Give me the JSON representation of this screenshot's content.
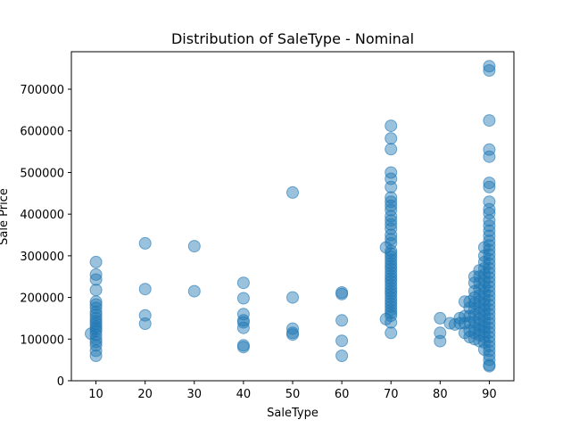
{
  "chart_data": {
    "type": "scatter",
    "title": "Distribution of SaleType - Nominal",
    "xlabel": "SaleType",
    "ylabel": "Sale Price",
    "xlim": [
      5,
      95
    ],
    "ylim": [
      0,
      790000
    ],
    "xticks": [
      10,
      20,
      30,
      40,
      50,
      60,
      70,
      80,
      90
    ],
    "yticks": [
      0,
      100000,
      200000,
      300000,
      400000,
      500000,
      600000,
      700000
    ],
    "point_color": "#1f77b4",
    "point_alpha": 0.45,
    "grid": false,
    "series": [
      {
        "points": [
          [
            10,
            285000
          ],
          [
            10,
            255000
          ],
          [
            10,
            243000
          ],
          [
            10,
            218000
          ],
          [
            10,
            190000
          ],
          [
            10,
            183000
          ],
          [
            10,
            175000
          ],
          [
            10,
            165000
          ],
          [
            10,
            158000
          ],
          [
            10,
            150000
          ],
          [
            10,
            143000
          ],
          [
            10,
            137000
          ],
          [
            10,
            130000
          ],
          [
            10,
            125000
          ],
          [
            10,
            119000
          ],
          [
            9,
            113000
          ],
          [
            10,
            110000
          ],
          [
            10,
            100000
          ],
          [
            10,
            93000
          ],
          [
            10,
            85000
          ],
          [
            10,
            72000
          ],
          [
            10,
            60000
          ],
          [
            20,
            330000
          ],
          [
            20,
            220000
          ],
          [
            20,
            157000
          ],
          [
            20,
            137000
          ],
          [
            30,
            323000
          ],
          [
            30,
            215000
          ],
          [
            40,
            235000
          ],
          [
            40,
            198000
          ],
          [
            40,
            160000
          ],
          [
            40,
            145000
          ],
          [
            40,
            140000
          ],
          [
            40,
            127000
          ],
          [
            40,
            85000
          ],
          [
            40,
            81000
          ],
          [
            50,
            452000
          ],
          [
            50,
            200000
          ],
          [
            50,
            125000
          ],
          [
            50,
            115000
          ],
          [
            50,
            111000
          ],
          [
            60,
            212000
          ],
          [
            60,
            208000
          ],
          [
            60,
            145000
          ],
          [
            60,
            96000
          ],
          [
            60,
            60000
          ],
          [
            70,
            612000
          ],
          [
            70,
            582000
          ],
          [
            70,
            556000
          ],
          [
            70,
            500000
          ],
          [
            70,
            485000
          ],
          [
            70,
            465000
          ],
          [
            70,
            440000
          ],
          [
            70,
            430000
          ],
          [
            70,
            420000
          ],
          [
            70,
            410000
          ],
          [
            70,
            395000
          ],
          [
            70,
            385000
          ],
          [
            70,
            375000
          ],
          [
            70,
            365000
          ],
          [
            70,
            350000
          ],
          [
            70,
            340000
          ],
          [
            70,
            330000
          ],
          [
            69,
            320000
          ],
          [
            70,
            312000
          ],
          [
            70,
            305000
          ],
          [
            70,
            298000
          ],
          [
            70,
            290000
          ],
          [
            70,
            282000
          ],
          [
            70,
            275000
          ],
          [
            70,
            268000
          ],
          [
            70,
            260000
          ],
          [
            70,
            252000
          ],
          [
            70,
            245000
          ],
          [
            70,
            238000
          ],
          [
            70,
            230000
          ],
          [
            70,
            222000
          ],
          [
            70,
            215000
          ],
          [
            70,
            208000
          ],
          [
            70,
            200000
          ],
          [
            70,
            192000
          ],
          [
            70,
            185000
          ],
          [
            70,
            178000
          ],
          [
            70,
            170000
          ],
          [
            70,
            163000
          ],
          [
            70,
            156000
          ],
          [
            69,
            148000
          ],
          [
            70,
            140000
          ],
          [
            70,
            115000
          ],
          [
            80,
            150000
          ],
          [
            80,
            115000
          ],
          [
            80,
            95000
          ],
          [
            82,
            138000
          ],
          [
            83,
            135000
          ],
          [
            84,
            138000
          ],
          [
            84,
            150000
          ],
          [
            85,
            115000
          ],
          [
            85,
            138000
          ],
          [
            85,
            155000
          ],
          [
            85,
            190000
          ],
          [
            86,
            105000
          ],
          [
            86,
            120000
          ],
          [
            86,
            140000
          ],
          [
            86,
            155000
          ],
          [
            86,
            175000
          ],
          [
            86,
            190000
          ],
          [
            87,
            100000
          ],
          [
            87,
            115000
          ],
          [
            87,
            128000
          ],
          [
            87,
            142000
          ],
          [
            87,
            158000
          ],
          [
            87,
            172000
          ],
          [
            87,
            186000
          ],
          [
            87,
            200000
          ],
          [
            87,
            215000
          ],
          [
            87,
            235000
          ],
          [
            87,
            250000
          ],
          [
            88,
            95000
          ],
          [
            88,
            110000
          ],
          [
            88,
            122000
          ],
          [
            88,
            135000
          ],
          [
            88,
            148000
          ],
          [
            88,
            162000
          ],
          [
            88,
            176000
          ],
          [
            88,
            190000
          ],
          [
            88,
            205000
          ],
          [
            88,
            220000
          ],
          [
            88,
            235000
          ],
          [
            88,
            250000
          ],
          [
            88,
            265000
          ],
          [
            89,
            75000
          ],
          [
            89,
            92000
          ],
          [
            89,
            105000
          ],
          [
            89,
            118000
          ],
          [
            89,
            130000
          ],
          [
            89,
            143000
          ],
          [
            89,
            156000
          ],
          [
            89,
            170000
          ],
          [
            89,
            183000
          ],
          [
            89,
            196000
          ],
          [
            89,
            210000
          ],
          [
            89,
            225000
          ],
          [
            89,
            240000
          ],
          [
            89,
            255000
          ],
          [
            89,
            270000
          ],
          [
            89,
            285000
          ],
          [
            89,
            300000
          ],
          [
            89,
            320000
          ],
          [
            90,
            755000
          ],
          [
            90,
            745000
          ],
          [
            90,
            625000
          ],
          [
            90,
            555000
          ],
          [
            90,
            538000
          ],
          [
            90,
            475000
          ],
          [
            90,
            465000
          ],
          [
            90,
            430000
          ],
          [
            90,
            412000
          ],
          [
            90,
            402000
          ],
          [
            90,
            385000
          ],
          [
            90,
            372000
          ],
          [
            90,
            360000
          ],
          [
            90,
            348000
          ],
          [
            90,
            336000
          ],
          [
            90,
            325000
          ],
          [
            90,
            314000
          ],
          [
            90,
            303000
          ],
          [
            90,
            292000
          ],
          [
            90,
            281000
          ],
          [
            90,
            270000
          ],
          [
            90,
            259000
          ],
          [
            90,
            248000
          ],
          [
            90,
            237000
          ],
          [
            90,
            226000
          ],
          [
            90,
            215000
          ],
          [
            90,
            204000
          ],
          [
            90,
            193000
          ],
          [
            90,
            182000
          ],
          [
            90,
            171000
          ],
          [
            90,
            160000
          ],
          [
            90,
            149000
          ],
          [
            90,
            138000
          ],
          [
            90,
            127000
          ],
          [
            90,
            116000
          ],
          [
            90,
            105000
          ],
          [
            90,
            94000
          ],
          [
            90,
            83000
          ],
          [
            90,
            72000
          ],
          [
            90,
            61000
          ],
          [
            90,
            50000
          ],
          [
            90,
            38000
          ],
          [
            90,
            35000
          ]
        ]
      }
    ]
  }
}
